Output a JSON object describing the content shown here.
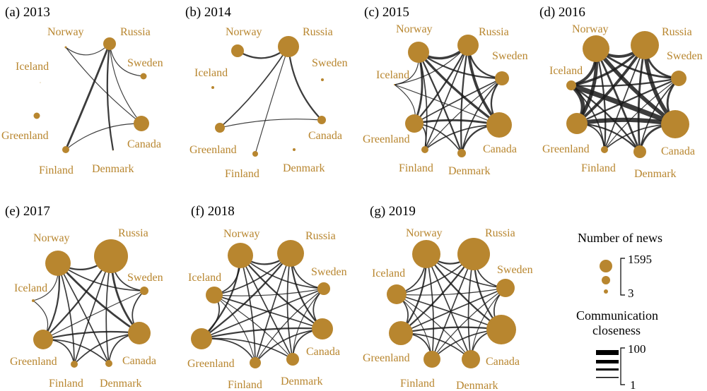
{
  "colors": {
    "node": "#b8862f",
    "label": "#b8862f",
    "edge": "#1a1a1a",
    "text": "#000000"
  },
  "countries": [
    "Norway",
    "Russia",
    "Iceland",
    "Sweden",
    "Greenland",
    "Canada",
    "Finland",
    "Denmark"
  ],
  "panels": [
    {
      "title": "(a) 2013",
      "node_size": {
        "Norway": 1.5,
        "Russia": 9,
        "Iceland": 0.5,
        "Sweden": 4.5,
        "Greenland": 4.5,
        "Canada": 11,
        "Finland": 5,
        "Denmark": 0.5
      },
      "edges": [
        [
          "Russia",
          "Finland",
          4
        ],
        [
          "Russia",
          "Denmark",
          3
        ],
        [
          "Russia",
          "Sweden",
          1
        ],
        [
          "Norway",
          "Russia",
          1
        ],
        [
          "Norway",
          "Canada",
          1
        ],
        [
          "Canada",
          "Finland",
          1
        ],
        [
          "Russia",
          "Canada",
          1
        ]
      ]
    },
    {
      "title": "(b) 2014",
      "node_size": {
        "Norway": 9,
        "Russia": 15,
        "Iceland": 2,
        "Sweden": 2,
        "Greenland": 7,
        "Canada": 6,
        "Finland": 4,
        "Denmark": 2
      },
      "edges": [
        [
          "Norway",
          "Russia",
          3
        ],
        [
          "Russia",
          "Greenland",
          2
        ],
        [
          "Russia",
          "Canada",
          3
        ],
        [
          "Russia",
          "Finland",
          1
        ],
        [
          "Greenland",
          "Canada",
          1
        ]
      ]
    },
    {
      "title": "(c) 2015",
      "node_size": {
        "Norway": 15,
        "Russia": 15,
        "Iceland": 1,
        "Sweden": 10,
        "Greenland": 13,
        "Canada": 18,
        "Finland": 5,
        "Denmark": 6
      },
      "edges": [
        [
          "Norway",
          "Russia",
          5
        ],
        [
          "Norway",
          "Sweden",
          3
        ],
        [
          "Norway",
          "Greenland",
          4
        ],
        [
          "Norway",
          "Canada",
          5
        ],
        [
          "Norway",
          "Finland",
          2
        ],
        [
          "Norway",
          "Denmark",
          3
        ],
        [
          "Russia",
          "Sweden",
          3
        ],
        [
          "Russia",
          "Greenland",
          3
        ],
        [
          "Russia",
          "Canada",
          6
        ],
        [
          "Russia",
          "Finland",
          2
        ],
        [
          "Russia",
          "Denmark",
          3
        ],
        [
          "Sweden",
          "Greenland",
          2
        ],
        [
          "Sweden",
          "Canada",
          3
        ],
        [
          "Sweden",
          "Finland",
          1
        ],
        [
          "Sweden",
          "Denmark",
          2
        ],
        [
          "Greenland",
          "Canada",
          4
        ],
        [
          "Greenland",
          "Finland",
          2
        ],
        [
          "Greenland",
          "Denmark",
          2
        ],
        [
          "Canada",
          "Finland",
          2
        ],
        [
          "Canada",
          "Denmark",
          3
        ],
        [
          "Iceland",
          "Norway",
          1
        ],
        [
          "Iceland",
          "Russia",
          1
        ],
        [
          "Iceland",
          "Canada",
          1
        ],
        [
          "Iceland",
          "Greenland",
          1
        ]
      ]
    },
    {
      "title": "(d) 2016",
      "node_size": {
        "Norway": 19,
        "Russia": 20,
        "Iceland": 7,
        "Sweden": 11,
        "Greenland": 15,
        "Canada": 20,
        "Finland": 5,
        "Denmark": 9
      },
      "edges": [
        [
          "Norway",
          "Russia",
          6
        ],
        [
          "Norway",
          "Sweden",
          4
        ],
        [
          "Norway",
          "Iceland",
          6
        ],
        [
          "Norway",
          "Greenland",
          8
        ],
        [
          "Norway",
          "Canada",
          9
        ],
        [
          "Norway",
          "Finland",
          3
        ],
        [
          "Norway",
          "Denmark",
          4
        ],
        [
          "Russia",
          "Sweden",
          4
        ],
        [
          "Russia",
          "Iceland",
          5
        ],
        [
          "Russia",
          "Greenland",
          6
        ],
        [
          "Russia",
          "Canada",
          9
        ],
        [
          "Russia",
          "Finland",
          2
        ],
        [
          "Russia",
          "Denmark",
          4
        ],
        [
          "Sweden",
          "Iceland",
          3
        ],
        [
          "Sweden",
          "Greenland",
          3
        ],
        [
          "Sweden",
          "Canada",
          4
        ],
        [
          "Sweden",
          "Finland",
          1
        ],
        [
          "Sweden",
          "Denmark",
          2
        ],
        [
          "Iceland",
          "Greenland",
          9
        ],
        [
          "Iceland",
          "Canada",
          12
        ],
        [
          "Iceland",
          "Finland",
          2
        ],
        [
          "Iceland",
          "Denmark",
          3
        ],
        [
          "Greenland",
          "Canada",
          10
        ],
        [
          "Greenland",
          "Finland",
          2
        ],
        [
          "Greenland",
          "Denmark",
          3
        ],
        [
          "Canada",
          "Finland",
          2
        ],
        [
          "Canada",
          "Denmark",
          4
        ]
      ]
    },
    {
      "title": "(e) 2017",
      "node_size": {
        "Norway": 18,
        "Russia": 24,
        "Iceland": 2,
        "Sweden": 6,
        "Greenland": 14,
        "Canada": 16,
        "Finland": 5,
        "Denmark": 5
      },
      "edges": [
        [
          "Norway",
          "Russia",
          3
        ],
        [
          "Norway",
          "Sweden",
          2
        ],
        [
          "Norway",
          "Greenland",
          3
        ],
        [
          "Norway",
          "Canada",
          4
        ],
        [
          "Norway",
          "Finland",
          2
        ],
        [
          "Norway",
          "Denmark",
          2
        ],
        [
          "Russia",
          "Sweden",
          2
        ],
        [
          "Russia",
          "Greenland",
          3
        ],
        [
          "Russia",
          "Canada",
          4
        ],
        [
          "Russia",
          "Finland",
          2
        ],
        [
          "Russia",
          "Denmark",
          2
        ],
        [
          "Sweden",
          "Greenland",
          1
        ],
        [
          "Sweden",
          "Canada",
          2
        ],
        [
          "Greenland",
          "Canada",
          3
        ],
        [
          "Greenland",
          "Finland",
          2
        ],
        [
          "Greenland",
          "Denmark",
          2
        ],
        [
          "Canada",
          "Finland",
          2
        ],
        [
          "Canada",
          "Denmark",
          2
        ],
        [
          "Iceland",
          "Norway",
          1
        ],
        [
          "Iceland",
          "Greenland",
          1
        ]
      ]
    },
    {
      "title": "(f) 2018",
      "node_size": {
        "Norway": 18,
        "Russia": 19,
        "Iceland": 12,
        "Sweden": 9,
        "Greenland": 15,
        "Canada": 15,
        "Finland": 8,
        "Denmark": 9
      },
      "edges": [
        [
          "Norway",
          "Russia",
          3
        ],
        [
          "Norway",
          "Sweden",
          2
        ],
        [
          "Norway",
          "Iceland",
          2
        ],
        [
          "Norway",
          "Greenland",
          3
        ],
        [
          "Norway",
          "Canada",
          3
        ],
        [
          "Norway",
          "Finland",
          2
        ],
        [
          "Norway",
          "Denmark",
          2
        ],
        [
          "Russia",
          "Sweden",
          2
        ],
        [
          "Russia",
          "Iceland",
          2
        ],
        [
          "Russia",
          "Greenland",
          3
        ],
        [
          "Russia",
          "Canada",
          3
        ],
        [
          "Russia",
          "Finland",
          2
        ],
        [
          "Russia",
          "Denmark",
          2
        ],
        [
          "Sweden",
          "Iceland",
          1
        ],
        [
          "Sweden",
          "Greenland",
          2
        ],
        [
          "Sweden",
          "Canada",
          2
        ],
        [
          "Sweden",
          "Finland",
          1
        ],
        [
          "Sweden",
          "Denmark",
          1
        ],
        [
          "Iceland",
          "Greenland",
          2
        ],
        [
          "Iceland",
          "Canada",
          2
        ],
        [
          "Iceland",
          "Finland",
          1
        ],
        [
          "Iceland",
          "Denmark",
          1
        ],
        [
          "Greenland",
          "Canada",
          3
        ],
        [
          "Greenland",
          "Finland",
          2
        ],
        [
          "Greenland",
          "Denmark",
          2
        ],
        [
          "Canada",
          "Finland",
          2
        ],
        [
          "Canada",
          "Denmark",
          2
        ]
      ]
    },
    {
      "title": "(g) 2019",
      "node_size": {
        "Norway": 20,
        "Russia": 23,
        "Iceland": 14,
        "Sweden": 13,
        "Greenland": 17,
        "Canada": 21,
        "Finland": 12,
        "Denmark": 13
      },
      "edges": [
        [
          "Norway",
          "Russia",
          3
        ],
        [
          "Norway",
          "Sweden",
          2
        ],
        [
          "Norway",
          "Iceland",
          2
        ],
        [
          "Norway",
          "Greenland",
          3
        ],
        [
          "Norway",
          "Canada",
          3
        ],
        [
          "Norway",
          "Finland",
          2
        ],
        [
          "Norway",
          "Denmark",
          2
        ],
        [
          "Russia",
          "Sweden",
          2
        ],
        [
          "Russia",
          "Iceland",
          2
        ],
        [
          "Russia",
          "Greenland",
          3
        ],
        [
          "Russia",
          "Canada",
          3
        ],
        [
          "Russia",
          "Finland",
          2
        ],
        [
          "Russia",
          "Denmark",
          2
        ],
        [
          "Sweden",
          "Iceland",
          1
        ],
        [
          "Sweden",
          "Greenland",
          2
        ],
        [
          "Sweden",
          "Canada",
          2
        ],
        [
          "Sweden",
          "Finland",
          1
        ],
        [
          "Sweden",
          "Denmark",
          1
        ],
        [
          "Iceland",
          "Greenland",
          2
        ],
        [
          "Iceland",
          "Canada",
          2
        ],
        [
          "Iceland",
          "Finland",
          1
        ],
        [
          "Iceland",
          "Denmark",
          1
        ],
        [
          "Greenland",
          "Canada",
          3
        ],
        [
          "Greenland",
          "Finland",
          2
        ],
        [
          "Greenland",
          "Denmark",
          2
        ],
        [
          "Canada",
          "Finland",
          2
        ],
        [
          "Canada",
          "Denmark",
          2
        ]
      ]
    }
  ],
  "legend": {
    "news_title": "Number of news",
    "news_max": "1595",
    "news_min": "3",
    "closeness_title_1": "Communication",
    "closeness_title_2": "closeness",
    "closeness_max": "100",
    "closeness_min": "1"
  }
}
